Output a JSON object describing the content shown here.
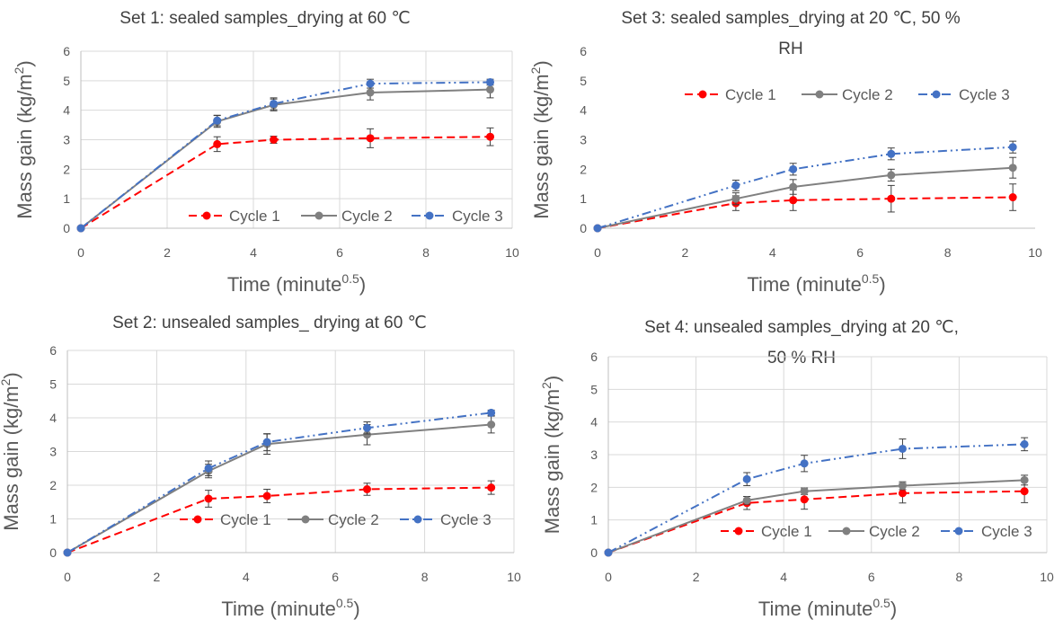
{
  "chart_data": [
    {
      "type": "line",
      "title_lines": [
        "Set 1: sealed samples_drying at 60 ℃"
      ],
      "xlabel": "Time (minute",
      "xlabel_sup": "0.5",
      "xlabel_close": ")",
      "ylabel": "Mass gain (kg/m",
      "ylabel_sup": "2",
      "ylabel_close": ")",
      "xlim": [
        0,
        10
      ],
      "ylim": [
        0,
        6
      ],
      "xticks": [
        "0",
        "2",
        "4",
        "6",
        "8",
        "10"
      ],
      "yticks": [
        "0",
        "1",
        "2",
        "3",
        "4",
        "5",
        "6"
      ],
      "grid": true,
      "legend": "bottom-right",
      "x": [
        0,
        3.16,
        4.47,
        6.71,
        9.49
      ],
      "series": [
        {
          "name": "Cycle 1",
          "color": "#ff0000",
          "dash": "dashed",
          "values": [
            0,
            2.85,
            3.0,
            3.05,
            3.1
          ],
          "errors": [
            0,
            0.25,
            0.12,
            0.32,
            0.3
          ]
        },
        {
          "name": "Cycle 2",
          "color": "#808080",
          "dash": "solid",
          "values": [
            0,
            3.62,
            4.18,
            4.6,
            4.7
          ],
          "errors": [
            0,
            0.2,
            0.2,
            0.25,
            0.28
          ]
        },
        {
          "name": "Cycle 3",
          "color": "#4472c4",
          "dash": "dashdotdot",
          "values": [
            0,
            3.65,
            4.22,
            4.9,
            4.95
          ],
          "errors": [
            0,
            0.18,
            0.2,
            0.15,
            0.1
          ]
        }
      ]
    },
    {
      "type": "line",
      "title_lines": [
        "Set 3: sealed samples_drying at 20 ℃, 50 %",
        "RH"
      ],
      "xlabel": "Time (minute",
      "xlabel_sup": "0.5",
      "xlabel_close": ")",
      "ylabel": "Mass gain (kg/m",
      "ylabel_sup": "2",
      "ylabel_close": ")",
      "xlim": [
        0,
        10
      ],
      "ylim": [
        0,
        6
      ],
      "xticks": [
        "0",
        "2",
        "4",
        "6",
        "8",
        "10"
      ],
      "yticks": [
        "0",
        "1",
        "2",
        "3",
        "4",
        "5",
        "6"
      ],
      "grid": false,
      "legend": "top-right",
      "x": [
        0,
        3.16,
        4.47,
        6.71,
        9.49
      ],
      "series": [
        {
          "name": "Cycle 1",
          "color": "#ff0000",
          "dash": "dashed",
          "values": [
            0,
            0.85,
            0.95,
            1.0,
            1.05
          ],
          "errors": [
            0,
            0.25,
            0.35,
            0.45,
            0.45
          ]
        },
        {
          "name": "Cycle 2",
          "color": "#808080",
          "dash": "solid",
          "values": [
            0,
            1.0,
            1.4,
            1.8,
            2.05
          ],
          "errors": [
            0,
            0.2,
            0.25,
            0.2,
            0.35
          ]
        },
        {
          "name": "Cycle 3",
          "color": "#4472c4",
          "dash": "dashdotdot",
          "values": [
            0,
            1.45,
            2.0,
            2.52,
            2.75
          ],
          "errors": [
            0,
            0.18,
            0.2,
            0.2,
            0.2
          ]
        }
      ]
    },
    {
      "type": "line",
      "title_lines": [
        "Set 2: unsealed samples_ drying at 60 ℃"
      ],
      "xlabel": "Time (minute",
      "xlabel_sup": "0.5",
      "xlabel_close": ")",
      "ylabel": "Mass gain (kg/m",
      "ylabel_sup": "2",
      "ylabel_close": ")",
      "xlim": [
        0,
        10
      ],
      "ylim": [
        0,
        6
      ],
      "xticks": [
        "0",
        "2",
        "4",
        "6",
        "8",
        "10"
      ],
      "yticks": [
        "0",
        "1",
        "2",
        "3",
        "4",
        "5",
        "6"
      ],
      "grid": true,
      "legend": "bottom-right",
      "x": [
        0,
        3.16,
        4.47,
        6.71,
        9.49
      ],
      "series": [
        {
          "name": "Cycle 1",
          "color": "#ff0000",
          "dash": "dashed",
          "values": [
            0,
            1.6,
            1.68,
            1.88,
            1.93
          ],
          "errors": [
            0,
            0.25,
            0.2,
            0.18,
            0.2
          ]
        },
        {
          "name": "Cycle 2",
          "color": "#808080",
          "dash": "solid",
          "values": [
            0,
            2.42,
            3.22,
            3.5,
            3.8
          ],
          "errors": [
            0,
            0.2,
            0.3,
            0.3,
            0.25
          ]
        },
        {
          "name": "Cycle 3",
          "color": "#4472c4",
          "dash": "dashdotdot",
          "values": [
            0,
            2.5,
            3.28,
            3.7,
            4.15
          ],
          "errors": [
            0,
            0.22,
            0.25,
            0.18,
            0.08
          ]
        }
      ]
    },
    {
      "type": "line",
      "title_lines": [
        "Set 4: unsealed samples_drying at 20 ℃,",
        "50 % RH"
      ],
      "xlabel": "Time (minute",
      "xlabel_sup": "0.5",
      "xlabel_close": ")",
      "ylabel": "Mass gain (kg/m",
      "ylabel_sup": "2",
      "ylabel_close": ")",
      "xlim": [
        0,
        10
      ],
      "ylim": [
        0,
        6
      ],
      "xticks": [
        "0",
        "2",
        "4",
        "6",
        "8",
        "10"
      ],
      "yticks": [
        "0",
        "1",
        "2",
        "3",
        "4",
        "5",
        "6"
      ],
      "grid": true,
      "legend": "bottom-right",
      "x": [
        0,
        3.16,
        4.47,
        6.71,
        9.49
      ],
      "series": [
        {
          "name": "Cycle 1",
          "color": "#ff0000",
          "dash": "dashed",
          "values": [
            0,
            1.52,
            1.63,
            1.82,
            1.88
          ],
          "errors": [
            0,
            0.2,
            0.3,
            0.3,
            0.35
          ]
        },
        {
          "name": "Cycle 2",
          "color": "#808080",
          "dash": "solid",
          "values": [
            0,
            1.6,
            1.88,
            2.05,
            2.22
          ],
          "errors": [
            0,
            0.12,
            0.1,
            0.12,
            0.15
          ]
        },
        {
          "name": "Cycle 3",
          "color": "#4472c4",
          "dash": "dashdotdot",
          "values": [
            0,
            2.25,
            2.73,
            3.18,
            3.32
          ],
          "errors": [
            0,
            0.2,
            0.25,
            0.3,
            0.2
          ]
        }
      ]
    }
  ]
}
